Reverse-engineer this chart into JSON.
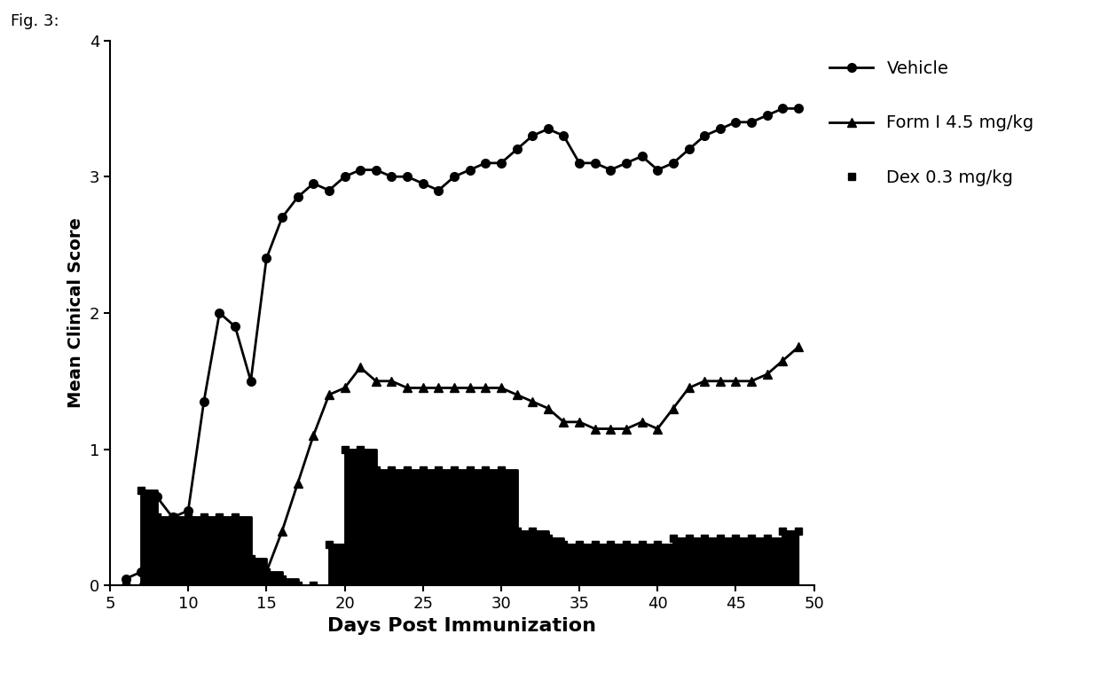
{
  "fig_label": "Fig. 3:",
  "xlabel": "Days Post Immunization",
  "ylabel": "Mean Clinical Score",
  "xlim": [
    5,
    50
  ],
  "ylim": [
    0,
    4
  ],
  "xticks": [
    5,
    10,
    15,
    20,
    25,
    30,
    35,
    40,
    45,
    50
  ],
  "yticks": [
    0,
    1,
    2,
    3,
    4
  ],
  "background_color": "#ffffff",
  "vehicle": {
    "label": "Vehicle",
    "color": "#000000",
    "marker": "o",
    "x": [
      6,
      7,
      8,
      9,
      10,
      11,
      12,
      13,
      14,
      15,
      16,
      17,
      18,
      19,
      20,
      21,
      22,
      23,
      24,
      25,
      26,
      27,
      28,
      29,
      30,
      31,
      32,
      33,
      34,
      35,
      36,
      37,
      38,
      39,
      40,
      41,
      42,
      43,
      44,
      45,
      46,
      47,
      48,
      49
    ],
    "y": [
      0.05,
      0.1,
      0.65,
      0.5,
      0.55,
      1.35,
      2.0,
      1.9,
      1.5,
      2.4,
      2.7,
      2.85,
      2.95,
      2.9,
      3.0,
      3.05,
      3.05,
      3.0,
      3.0,
      2.95,
      2.9,
      3.0,
      3.05,
      3.1,
      3.1,
      3.2,
      3.3,
      3.35,
      3.3,
      3.1,
      3.1,
      3.05,
      3.1,
      3.15,
      3.05,
      3.1,
      3.2,
      3.3,
      3.35,
      3.4,
      3.4,
      3.45,
      3.5,
      3.5
    ]
  },
  "form1": {
    "label": "Form I 4.5 mg/kg",
    "color": "#000000",
    "marker": "^",
    "x": [
      6,
      7,
      8,
      9,
      10,
      11,
      12,
      13,
      14,
      15,
      16,
      17,
      18,
      19,
      20,
      21,
      22,
      23,
      24,
      25,
      26,
      27,
      28,
      29,
      30,
      31,
      32,
      33,
      34,
      35,
      36,
      37,
      38,
      39,
      40,
      41,
      42,
      43,
      44,
      45,
      46,
      47,
      48,
      49
    ],
    "y": [
      0.0,
      0.0,
      0.0,
      0.0,
      0.0,
      0.0,
      0.0,
      0.0,
      0.0,
      0.1,
      0.4,
      0.75,
      1.1,
      1.4,
      1.45,
      1.6,
      1.5,
      1.5,
      1.45,
      1.45,
      1.45,
      1.45,
      1.45,
      1.45,
      1.45,
      1.4,
      1.35,
      1.3,
      1.2,
      1.2,
      1.15,
      1.15,
      1.15,
      1.2,
      1.15,
      1.3,
      1.45,
      1.5,
      1.5,
      1.5,
      1.5,
      1.55,
      1.65,
      1.75
    ]
  },
  "dex": {
    "label": "Dex 0.3 mg/kg",
    "color": "#000000",
    "marker": "s",
    "x": [
      6,
      7,
      8,
      9,
      10,
      11,
      12,
      13,
      14,
      15,
      16,
      17,
      18,
      19,
      20,
      21,
      22,
      23,
      24,
      25,
      26,
      27,
      28,
      29,
      30,
      31,
      32,
      33,
      34,
      35,
      36,
      37,
      38,
      39,
      40,
      41,
      42,
      43,
      44,
      45,
      46,
      47,
      48,
      49
    ],
    "y": [
      0.0,
      0.7,
      0.5,
      0.5,
      0.5,
      0.5,
      0.5,
      0.5,
      0.2,
      0.1,
      0.05,
      0.0,
      0.0,
      0.3,
      1.0,
      1.0,
      0.85,
      0.85,
      0.85,
      0.85,
      0.85,
      0.85,
      0.85,
      0.85,
      0.85,
      0.4,
      0.4,
      0.35,
      0.3,
      0.3,
      0.3,
      0.3,
      0.3,
      0.3,
      0.3,
      0.35,
      0.35,
      0.35,
      0.35,
      0.35,
      0.35,
      0.35,
      0.4,
      0.4
    ]
  },
  "linewidth": 2.0,
  "markersize": 7,
  "xlabel_fontsize": 16,
  "ylabel_fontsize": 14,
  "tick_fontsize": 13,
  "legend_fontsize": 14,
  "fig_label_fontsize": 13
}
